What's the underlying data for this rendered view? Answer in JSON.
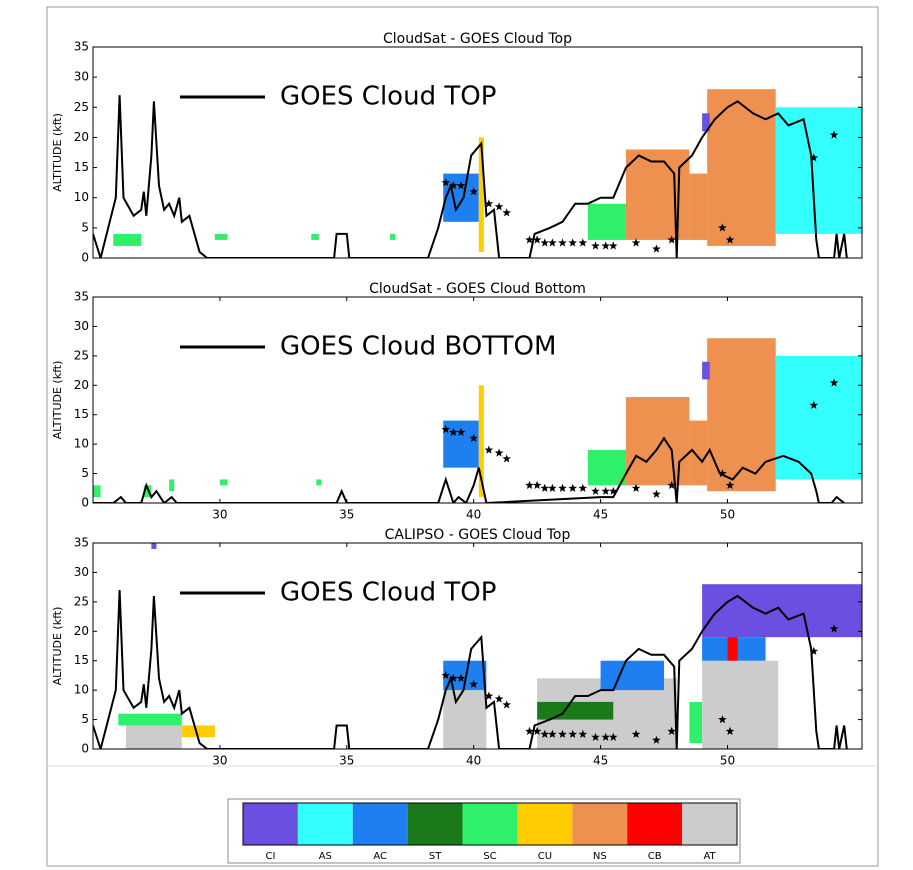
{
  "chart_data": [
    {
      "type": "line",
      "title": "CloudSat - GOES Cloud Top",
      "y_label": "ALTITUDE (kft)",
      "xlim": [
        25,
        55.3
      ],
      "ylim": [
        0,
        35
      ],
      "yticks": [
        0,
        5,
        10,
        15,
        20,
        25,
        30,
        35
      ],
      "series": [
        {
          "name": "GOES Cloud TOP",
          "color": "#000000",
          "x": [
            25.0,
            25.3,
            25.6,
            25.9,
            26.05,
            26.2,
            26.6,
            26.9,
            27.0,
            27.1,
            27.3,
            27.4,
            27.6,
            27.8,
            28.0,
            28.2,
            28.4,
            28.5,
            28.8,
            29.2,
            29.5,
            34.5,
            34.6,
            35.0,
            35.1,
            38.2,
            38.6,
            38.9,
            39.1,
            39.3,
            39.6,
            39.9,
            40.3,
            40.5,
            40.8,
            41.0,
            42.2,
            42.4,
            43.0,
            43.5,
            44.0,
            44.5,
            45.0,
            45.5,
            46.0,
            46.5,
            47.0,
            47.5,
            47.9,
            48.0,
            48.1,
            48.6,
            49.0,
            49.5,
            50.0,
            50.4,
            51.0,
            51.5,
            52.0,
            52.4,
            53.0,
            53.3,
            53.5,
            53.6,
            54.2,
            54.3,
            54.4,
            54.6,
            54.7
          ],
          "values": [
            4,
            0,
            5,
            10,
            27,
            10,
            7,
            8,
            11,
            7,
            17,
            26,
            12,
            8,
            9,
            7,
            10,
            6,
            7,
            1,
            0,
            0,
            4,
            4,
            0,
            0,
            5,
            10,
            12,
            8,
            10,
            17,
            19,
            7,
            8,
            0,
            0,
            4,
            5,
            6,
            9,
            9,
            10,
            10,
            15,
            17,
            16,
            16,
            14,
            0,
            15,
            17,
            20,
            23,
            25,
            26,
            24,
            23,
            24,
            22,
            23,
            17,
            3,
            0,
            0,
            4,
            0,
            4,
            0
          ]
        }
      ],
      "markers": {
        "x": [
          38.9,
          39.2,
          39.5,
          40.0,
          40.6,
          41.0,
          41.3,
          42.2,
          42.5,
          42.8,
          43.1,
          43.5,
          43.9,
          44.3,
          44.8,
          45.2,
          45.5,
          46.4,
          47.2,
          47.8,
          49.8,
          50.1,
          53.4,
          54.2
        ],
        "values": [
          12.5,
          12,
          12,
          11,
          9,
          8.5,
          7.5,
          3,
          3,
          2.5,
          2.5,
          2.5,
          2.5,
          2.5,
          2,
          2,
          2,
          2.5,
          1.5,
          3,
          5,
          3,
          16.6,
          20.4
        ]
      },
      "patches": [
        {
          "class": "SC",
          "x": [
            25.8,
            26.9
          ],
          "y": [
            2,
            4
          ]
        },
        {
          "class": "SC",
          "x": [
            29.8,
            30.3
          ],
          "y": [
            3,
            4
          ]
        },
        {
          "class": "SC",
          "x": [
            33.6,
            33.9
          ],
          "y": [
            3,
            4
          ]
        },
        {
          "class": "SC",
          "x": [
            36.7,
            36.9
          ],
          "y": [
            3,
            4
          ]
        },
        {
          "class": "AC",
          "x": [
            38.8,
            40.2
          ],
          "y": [
            6,
            14
          ]
        },
        {
          "class": "CU",
          "x": [
            40.2,
            40.4
          ],
          "y": [
            1,
            20
          ]
        },
        {
          "class": "SC",
          "x": [
            44.5,
            46.0
          ],
          "y": [
            3,
            9
          ]
        },
        {
          "class": "NS",
          "x": [
            46.0,
            48.5
          ],
          "y": [
            3,
            18
          ]
        },
        {
          "class": "NS",
          "x": [
            48.5,
            49.2
          ],
          "y": [
            3,
            14
          ]
        },
        {
          "class": "NS",
          "x": [
            49.2,
            51.9
          ],
          "y": [
            2,
            28
          ]
        },
        {
          "class": "CI",
          "x": [
            49.0,
            49.3
          ],
          "y": [
            21,
            24
          ]
        },
        {
          "class": "AS",
          "x": [
            51.9,
            55.3
          ],
          "y": [
            4,
            25
          ]
        }
      ]
    },
    {
      "type": "line",
      "title": "CloudSat - GOES Cloud Bottom",
      "y_label": "ALTITUDE (kft)",
      "xlim": [
        25,
        55.3
      ],
      "ylim": [
        0,
        35
      ],
      "yticks": [
        0,
        5,
        10,
        15,
        20,
        25,
        30,
        35
      ],
      "xticks": [
        30,
        35,
        40,
        45,
        50
      ],
      "series": [
        {
          "name": "GOES Cloud BOTTOM",
          "color": "#000000",
          "x": [
            25.0,
            25.8,
            26.1,
            26.3,
            26.9,
            27.1,
            27.3,
            27.5,
            27.8,
            28.1,
            28.3,
            34.6,
            34.8,
            35.0,
            38.6,
            38.9,
            39.2,
            39.4,
            39.7,
            40.0,
            40.2,
            40.5,
            45.0,
            45.5,
            46.0,
            46.4,
            46.8,
            47.2,
            47.5,
            47.8,
            48.0,
            48.1,
            48.6,
            49.0,
            49.3,
            49.7,
            50.2,
            50.6,
            51.1,
            51.5,
            52.2,
            52.8,
            53.3,
            53.5,
            53.6,
            54.1,
            54.3,
            54.6
          ],
          "values": [
            0,
            0,
            1,
            0,
            0,
            3,
            1,
            2,
            0,
            1,
            0,
            0,
            2,
            0,
            0,
            4,
            0,
            1,
            0,
            3,
            6,
            0,
            1,
            1,
            5,
            8,
            7,
            9,
            11,
            9,
            0,
            7,
            9,
            7,
            9,
            5,
            4,
            6,
            5,
            7,
            8,
            7,
            5,
            2,
            0,
            0,
            1,
            0
          ]
        }
      ],
      "markers": {
        "x": [
          38.9,
          39.2,
          39.5,
          40.0,
          40.6,
          41.0,
          41.3,
          42.2,
          42.5,
          42.8,
          43.1,
          43.5,
          43.9,
          44.3,
          44.8,
          45.2,
          45.5,
          46.4,
          47.2,
          47.8,
          49.8,
          50.1,
          53.4,
          54.2
        ],
        "values": [
          12.5,
          12,
          12,
          11,
          9,
          8.5,
          7.5,
          3,
          3,
          2.5,
          2.5,
          2.5,
          2.5,
          2.5,
          2,
          2,
          2,
          2.5,
          1.5,
          3,
          5,
          3,
          16.6,
          20.4
        ]
      },
      "patches": [
        {
          "class": "SC",
          "x": [
            25.0,
            25.3
          ],
          "y": [
            1,
            3
          ]
        },
        {
          "class": "SC",
          "x": [
            27.0,
            27.3
          ],
          "y": [
            1,
            3
          ]
        },
        {
          "class": "SC",
          "x": [
            28.0,
            28.2
          ],
          "y": [
            2,
            4
          ]
        },
        {
          "class": "SC",
          "x": [
            30.0,
            30.3
          ],
          "y": [
            3,
            4
          ]
        },
        {
          "class": "SC",
          "x": [
            33.8,
            34.0
          ],
          "y": [
            3,
            4
          ]
        },
        {
          "class": "AC",
          "x": [
            38.8,
            40.2
          ],
          "y": [
            6,
            14
          ]
        },
        {
          "class": "CU",
          "x": [
            40.2,
            40.4
          ],
          "y": [
            1,
            20
          ]
        },
        {
          "class": "SC",
          "x": [
            44.5,
            46.0
          ],
          "y": [
            3,
            9
          ]
        },
        {
          "class": "NS",
          "x": [
            46.0,
            48.5
          ],
          "y": [
            3,
            18
          ]
        },
        {
          "class": "NS",
          "x": [
            48.5,
            49.2
          ],
          "y": [
            3,
            14
          ]
        },
        {
          "class": "NS",
          "x": [
            49.2,
            51.9
          ],
          "y": [
            2,
            28
          ]
        },
        {
          "class": "CI",
          "x": [
            49.0,
            49.3
          ],
          "y": [
            21,
            24
          ]
        },
        {
          "class": "AS",
          "x": [
            51.9,
            55.3
          ],
          "y": [
            4,
            25
          ]
        }
      ]
    },
    {
      "type": "line",
      "title": "CALIPSO - GOES Cloud Top",
      "y_label": "ALTITUDE (kft)",
      "xlim": [
        25,
        55.3
      ],
      "ylim": [
        0,
        35
      ],
      "yticks": [
        0,
        5,
        10,
        15,
        20,
        25,
        30,
        35
      ],
      "xticks": [
        30,
        35,
        40,
        45,
        50
      ],
      "series": [
        {
          "name": "GOES Cloud TOP",
          "color": "#000000",
          "x": [
            25.0,
            25.3,
            25.6,
            25.9,
            26.05,
            26.2,
            26.6,
            26.9,
            27.0,
            27.1,
            27.3,
            27.4,
            27.6,
            27.8,
            28.0,
            28.2,
            28.4,
            28.5,
            28.8,
            29.2,
            29.5,
            34.5,
            34.6,
            35.0,
            35.1,
            38.2,
            38.6,
            38.9,
            39.1,
            39.3,
            39.6,
            39.9,
            40.3,
            40.5,
            40.8,
            41.0,
            42.2,
            42.4,
            43.0,
            43.5,
            44.0,
            44.5,
            45.0,
            45.5,
            46.0,
            46.5,
            47.0,
            47.5,
            47.9,
            48.0,
            48.1,
            48.6,
            49.0,
            49.5,
            50.0,
            50.4,
            51.0,
            51.5,
            52.0,
            52.4,
            53.0,
            53.3,
            53.5,
            53.6,
            54.2,
            54.3,
            54.4,
            54.6,
            54.7
          ],
          "values": [
            4,
            0,
            5,
            10,
            27,
            10,
            7,
            8,
            11,
            7,
            17,
            26,
            12,
            8,
            9,
            7,
            10,
            6,
            7,
            1,
            0,
            0,
            4,
            4,
            0,
            0,
            5,
            10,
            12,
            8,
            10,
            17,
            19,
            7,
            8,
            0,
            0,
            4,
            5,
            6,
            9,
            9,
            10,
            10,
            15,
            17,
            16,
            16,
            14,
            0,
            15,
            17,
            20,
            23,
            25,
            26,
            24,
            23,
            24,
            22,
            23,
            17,
            3,
            0,
            0,
            4,
            0,
            4,
            0
          ]
        }
      ],
      "markers": {
        "x": [
          38.9,
          39.2,
          39.5,
          40.0,
          40.6,
          41.0,
          41.3,
          42.2,
          42.5,
          42.8,
          43.1,
          43.5,
          43.9,
          44.3,
          44.8,
          45.2,
          45.5,
          46.4,
          47.2,
          47.8,
          49.8,
          50.1,
          53.4,
          54.2
        ],
        "values": [
          12.5,
          12,
          12,
          11,
          9,
          8.5,
          7.5,
          3,
          3,
          2.5,
          2.5,
          2.5,
          2.5,
          2.5,
          2,
          2,
          2,
          2.5,
          1.5,
          3,
          5,
          3,
          16.6,
          20.4
        ]
      },
      "patches": [
        {
          "class": "CI",
          "x": [
            27.3,
            27.5
          ],
          "y": [
            34,
            35
          ]
        },
        {
          "class": "AT",
          "x": [
            26.3,
            28.5
          ],
          "y": [
            0,
            4
          ]
        },
        {
          "class": "SC",
          "x": [
            26.0,
            28.5
          ],
          "y": [
            4,
            6
          ]
        },
        {
          "class": "CU",
          "x": [
            28.5,
            29.8
          ],
          "y": [
            2,
            4
          ]
        },
        {
          "class": "AT",
          "x": [
            38.8,
            40.5
          ],
          "y": [
            0,
            10
          ]
        },
        {
          "class": "AC",
          "x": [
            38.8,
            40.5
          ],
          "y": [
            10,
            15
          ]
        },
        {
          "class": "AT",
          "x": [
            42.5,
            48.0
          ],
          "y": [
            0,
            12
          ]
        },
        {
          "class": "ST",
          "x": [
            42.5,
            45.5
          ],
          "y": [
            5,
            8
          ]
        },
        {
          "class": "AC",
          "x": [
            45.0,
            47.5
          ],
          "y": [
            10,
            15
          ]
        },
        {
          "class": "SC",
          "x": [
            48.5,
            49.0
          ],
          "y": [
            1,
            8
          ]
        },
        {
          "class": "AT",
          "x": [
            49.0,
            52.0
          ],
          "y": [
            0,
            15
          ]
        },
        {
          "class": "AC",
          "x": [
            49.0,
            51.5
          ],
          "y": [
            15,
            19
          ]
        },
        {
          "class": "CB",
          "x": [
            50.0,
            50.4
          ],
          "y": [
            15,
            20
          ]
        },
        {
          "class": "CI",
          "x": [
            49.0,
            55.3
          ],
          "y": [
            19,
            28
          ]
        }
      ]
    },
    {
      "type": "colorbar",
      "categories": [
        "CI",
        "AS",
        "AC",
        "ST",
        "SC",
        "CU",
        "NS",
        "CB",
        "AT"
      ],
      "colors": [
        "#6a4fe0",
        "#33ffff",
        "#1e7ff0",
        "#1a7a1a",
        "#2ef06a",
        "#ffcc00",
        "#ee9050",
        "#ff0000",
        "#cccccc"
      ]
    }
  ]
}
